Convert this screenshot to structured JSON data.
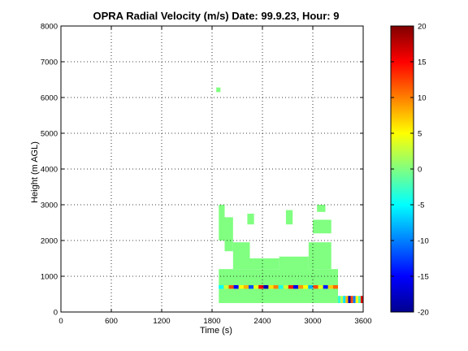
{
  "chart_data": {
    "type": "heatmap",
    "title": "OPRA Radial Velocity (m/s)  Date: 99.9.23, Hour: 9",
    "xlabel": "Time (s)",
    "ylabel": "Height (m AGL)",
    "xlim": [
      0,
      3600
    ],
    "ylim": [
      0,
      8000
    ],
    "xticks": [
      0,
      600,
      1200,
      1800,
      2400,
      3000,
      3600
    ],
    "xtick_labels": [
      "0",
      "600",
      "1200",
      "1800",
      "2400",
      "3000",
      "3600"
    ],
    "yticks": [
      0,
      1000,
      2000,
      3000,
      4000,
      5000,
      6000,
      7000,
      8000
    ],
    "ytick_labels": [
      "0",
      "1000",
      "2000",
      "3000",
      "4000",
      "5000",
      "6000",
      "7000",
      "8000"
    ],
    "grid": true,
    "colorbar": {
      "colormap": "jet",
      "clim": [
        -20,
        20
      ],
      "ticks": [
        -20,
        -15,
        -10,
        -5,
        0,
        5,
        10,
        15,
        20
      ],
      "tick_labels": [
        "-20",
        "-15",
        "-10",
        "-5",
        "0",
        "5",
        "10",
        "15",
        "20"
      ],
      "placement": "right"
    },
    "dominant_value": 0,
    "regions": [
      {
        "x": [
          1850,
          1900
        ],
        "y": [
          6150,
          6280
        ],
        "value": 0
      },
      {
        "x": [
          1880,
          1950
        ],
        "y": [
          2000,
          3000
        ],
        "value": 0
      },
      {
        "x": [
          1950,
          2050
        ],
        "y": [
          1700,
          2650
        ],
        "value": 0
      },
      {
        "x": [
          2220,
          2300
        ],
        "y": [
          2450,
          2750
        ],
        "value": 0
      },
      {
        "x": [
          2680,
          2760
        ],
        "y": [
          2450,
          2850
        ],
        "value": 0
      },
      {
        "x": [
          3000,
          3220
        ],
        "y": [
          2200,
          2580
        ],
        "value": 0
      },
      {
        "x": [
          3050,
          3150
        ],
        "y": [
          2800,
          3000
        ],
        "value": 0
      },
      {
        "x": [
          2050,
          2250
        ],
        "y": [
          1200,
          1950
        ],
        "value": 0
      },
      {
        "x": [
          2250,
          2600
        ],
        "y": [
          1200,
          1500
        ],
        "value": 0
      },
      {
        "x": [
          2600,
          2950
        ],
        "y": [
          1100,
          1550
        ],
        "value": 0
      },
      {
        "x": [
          2950,
          3220
        ],
        "y": [
          1200,
          1950
        ],
        "value": 0
      },
      {
        "x": [
          1880,
          3300
        ],
        "y": [
          250,
          1200
        ],
        "value": 0
      }
    ],
    "near_surface_band": {
      "x": [
        1880,
        3300
      ],
      "y": [
        650,
        750
      ],
      "values": [
        -5,
        3,
        12,
        -15,
        5,
        8,
        -12,
        4,
        15,
        -18,
        6,
        10,
        -4,
        3,
        14,
        -16,
        9,
        5,
        -8,
        12,
        4,
        -14,
        7,
        11
      ]
    },
    "trailing_region": {
      "x": [
        3300,
        3600
      ],
      "y": [
        250,
        450
      ],
      "values": [
        -3,
        2,
        -6,
        8,
        -18,
        12,
        -10,
        5,
        -2,
        16
      ]
    }
  }
}
